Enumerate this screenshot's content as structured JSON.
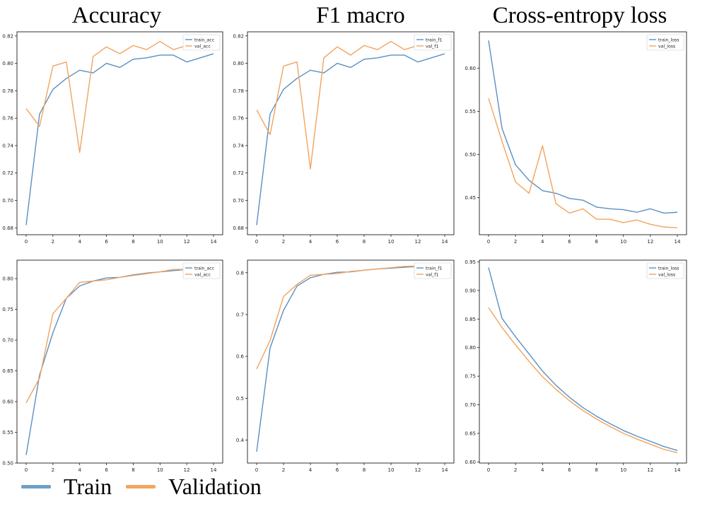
{
  "column_titles": [
    "Accuracy",
    "F1 macro",
    "Cross-entropy loss"
  ],
  "footer_legend": {
    "train_label": "Train",
    "val_label": "Validation",
    "train_color": "#6f9fc7",
    "val_color": "#f5a55c"
  },
  "colors": {
    "train": "#5a90c2",
    "val": "#f2a35e"
  },
  "chart_data": [
    {
      "type": "line",
      "panel": "top-left",
      "x": [
        0,
        1,
        2,
        3,
        4,
        5,
        6,
        7,
        8,
        9,
        10,
        11,
        12,
        13,
        14
      ],
      "xticks": [
        0,
        2,
        4,
        6,
        8,
        10,
        12,
        14
      ],
      "ylim": [
        0.675,
        0.823
      ],
      "yticks": [
        0.68,
        0.7,
        0.72,
        0.74,
        0.76,
        0.78,
        0.8,
        0.82
      ],
      "ytick_labels": [
        "0.68",
        "0.70",
        "0.72",
        "0.74",
        "0.76",
        "0.78",
        "0.80",
        "0.82"
      ],
      "legend_position": "top-right",
      "series": [
        {
          "name": "train_acc",
          "color": "train",
          "values": [
            0.682,
            0.763,
            0.781,
            0.789,
            0.795,
            0.793,
            0.8,
            0.797,
            0.803,
            0.804,
            0.806,
            0.806,
            0.801,
            0.804,
            0.807
          ]
        },
        {
          "name": "val_acc",
          "color": "val",
          "values": [
            0.767,
            0.754,
            0.798,
            0.801,
            0.735,
            0.805,
            0.812,
            0.807,
            0.813,
            0.81,
            0.816,
            0.81,
            0.813,
            0.816,
            0.816
          ]
        }
      ]
    },
    {
      "type": "line",
      "panel": "top-middle",
      "x": [
        0,
        1,
        2,
        3,
        4,
        5,
        6,
        7,
        8,
        9,
        10,
        11,
        12,
        13,
        14
      ],
      "xticks": [
        0,
        2,
        4,
        6,
        8,
        10,
        12,
        14
      ],
      "ylim": [
        0.675,
        0.823
      ],
      "yticks": [
        0.68,
        0.7,
        0.72,
        0.74,
        0.76,
        0.78,
        0.8,
        0.82
      ],
      "ytick_labels": [
        "0.68",
        "0.70",
        "0.72",
        "0.74",
        "0.76",
        "0.78",
        "0.80",
        "0.82"
      ],
      "legend_position": "top-right",
      "series": [
        {
          "name": "train_f1",
          "color": "train",
          "values": [
            0.682,
            0.763,
            0.781,
            0.789,
            0.795,
            0.793,
            0.8,
            0.797,
            0.803,
            0.804,
            0.806,
            0.806,
            0.801,
            0.804,
            0.807
          ]
        },
        {
          "name": "val_f1",
          "color": "val",
          "values": [
            0.766,
            0.748,
            0.798,
            0.801,
            0.723,
            0.804,
            0.812,
            0.806,
            0.813,
            0.81,
            0.816,
            0.81,
            0.813,
            0.816,
            0.816
          ]
        }
      ]
    },
    {
      "type": "line",
      "panel": "top-right",
      "x": [
        0,
        1,
        2,
        3,
        4,
        5,
        6,
        7,
        8,
        9,
        10,
        11,
        12,
        13,
        14
      ],
      "xticks": [
        0,
        2,
        4,
        6,
        8,
        10,
        12,
        14
      ],
      "ylim": [
        0.407,
        0.642
      ],
      "yticks": [
        0.45,
        0.5,
        0.55,
        0.6
      ],
      "ytick_labels": [
        "0.45",
        "0.50",
        "0.55",
        "0.60"
      ],
      "legend_position": "top-right",
      "series": [
        {
          "name": "train_loss",
          "color": "train",
          "values": [
            0.632,
            0.53,
            0.488,
            0.47,
            0.458,
            0.455,
            0.449,
            0.447,
            0.439,
            0.437,
            0.436,
            0.433,
            0.437,
            0.432,
            0.433
          ]
        },
        {
          "name": "val_loss",
          "color": "val",
          "values": [
            0.565,
            0.515,
            0.468,
            0.455,
            0.51,
            0.443,
            0.432,
            0.437,
            0.425,
            0.425,
            0.421,
            0.424,
            0.419,
            0.416,
            0.415
          ]
        }
      ]
    },
    {
      "type": "line",
      "panel": "bottom-left",
      "x": [
        0,
        1,
        2,
        3,
        4,
        5,
        6,
        7,
        8,
        9,
        10,
        11,
        12,
        13,
        14
      ],
      "xticks": [
        0,
        2,
        4,
        6,
        8,
        10,
        12,
        14
      ],
      "ylim": [
        0.5,
        0.83
      ],
      "yticks": [
        0.5,
        0.55,
        0.6,
        0.65,
        0.7,
        0.75,
        0.8
      ],
      "ytick_labels": [
        "0.50",
        "0.55",
        "0.60",
        "0.65",
        "0.70",
        "0.75",
        "0.80"
      ],
      "legend_position": "top-right",
      "series": [
        {
          "name": "train_acc",
          "color": "train",
          "values": [
            0.513,
            0.643,
            0.712,
            0.768,
            0.788,
            0.796,
            0.801,
            0.802,
            0.806,
            0.809,
            0.811,
            0.813,
            0.815,
            0.817,
            0.818
          ]
        },
        {
          "name": "val_acc",
          "color": "val",
          "values": [
            0.598,
            0.638,
            0.743,
            0.768,
            0.794,
            0.796,
            0.798,
            0.802,
            0.805,
            0.808,
            0.811,
            0.815,
            0.815,
            0.817,
            0.818
          ]
        }
      ]
    },
    {
      "type": "line",
      "panel": "bottom-middle",
      "x": [
        0,
        1,
        2,
        3,
        4,
        5,
        6,
        7,
        8,
        9,
        10,
        11,
        12,
        13,
        14
      ],
      "xticks": [
        0,
        2,
        4,
        6,
        8,
        10,
        12,
        14
      ],
      "ylim": [
        0.345,
        0.83
      ],
      "yticks": [
        0.4,
        0.5,
        0.6,
        0.7,
        0.8
      ],
      "ytick_labels": [
        "0.4",
        "0.5",
        "0.6",
        "0.7",
        "0.8"
      ],
      "legend_position": "top-right",
      "series": [
        {
          "name": "train_f1",
          "color": "train",
          "values": [
            0.372,
            0.62,
            0.71,
            0.768,
            0.788,
            0.796,
            0.801,
            0.802,
            0.806,
            0.809,
            0.811,
            0.813,
            0.815,
            0.817,
            0.818
          ]
        },
        {
          "name": "val_f1",
          "color": "val",
          "values": [
            0.57,
            0.638,
            0.743,
            0.772,
            0.794,
            0.796,
            0.798,
            0.803,
            0.806,
            0.809,
            0.812,
            0.815,
            0.816,
            0.817,
            0.818
          ]
        }
      ]
    },
    {
      "type": "line",
      "panel": "bottom-right",
      "x": [
        0,
        1,
        2,
        3,
        4,
        5,
        6,
        7,
        8,
        9,
        10,
        11,
        12,
        13,
        14
      ],
      "xticks": [
        0,
        2,
        4,
        6,
        8,
        10,
        12,
        14
      ],
      "ylim": [
        0.598,
        0.953
      ],
      "yticks": [
        0.6,
        0.65,
        0.7,
        0.75,
        0.8,
        0.85,
        0.9,
        0.95
      ],
      "ytick_labels": [
        "0.60",
        "0.65",
        "0.70",
        "0.75",
        "0.80",
        "0.85",
        "0.90",
        "0.95"
      ],
      "legend_position": "top-right",
      "series": [
        {
          "name": "train_loss",
          "color": "train",
          "values": [
            0.94,
            0.851,
            0.819,
            0.789,
            0.759,
            0.734,
            0.713,
            0.695,
            0.68,
            0.667,
            0.655,
            0.645,
            0.636,
            0.627,
            0.62
          ]
        },
        {
          "name": "val_loss",
          "color": "val",
          "values": [
            0.87,
            0.835,
            0.805,
            0.776,
            0.749,
            0.727,
            0.707,
            0.69,
            0.675,
            0.662,
            0.65,
            0.64,
            0.631,
            0.622,
            0.616
          ]
        }
      ]
    }
  ]
}
